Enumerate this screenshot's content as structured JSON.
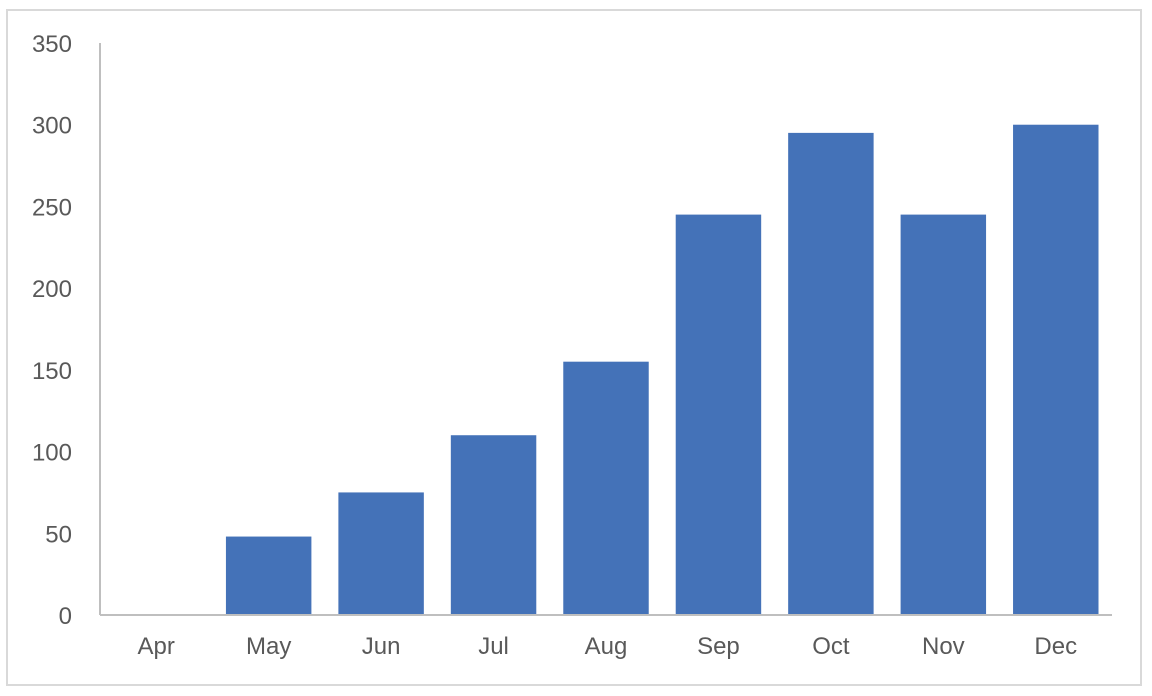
{
  "chart_data": {
    "type": "bar",
    "categories": [
      "Apr",
      "May",
      "Jun",
      "Jul",
      "Aug",
      "Sep",
      "Oct",
      "Nov",
      "Dec"
    ],
    "values": [
      0,
      48,
      75,
      110,
      155,
      245,
      295,
      245,
      300
    ],
    "title": "",
    "xlabel": "",
    "ylabel": "",
    "ylim": [
      0,
      350
    ],
    "yticks": [
      0,
      50,
      100,
      150,
      200,
      250,
      300,
      350
    ],
    "grid": false,
    "legend": "none",
    "colors": {
      "bar": "#4472b8",
      "axis": "#bfbfbf",
      "text": "#595959",
      "border": "#d9d9d9"
    }
  }
}
